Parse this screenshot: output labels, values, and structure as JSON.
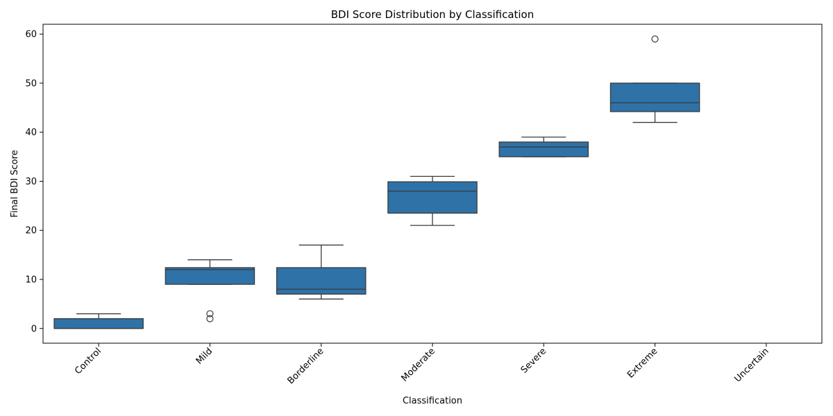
{
  "chart_data": {
    "type": "box",
    "title": "BDI Score Distribution by Classification",
    "xlabel": "Classification",
    "ylabel": "Final BDI Score",
    "ylim": [
      -3,
      62
    ],
    "yticks": [
      0,
      10,
      20,
      30,
      40,
      50,
      60
    ],
    "grid": false,
    "x_tick_rotation": 45,
    "box_color": "#2f72a8",
    "line_color": "#3a3a3a",
    "categories": [
      "Control",
      "Mild",
      "Borderline",
      "Moderate",
      "Severe",
      "Extreme",
      "Uncertain"
    ],
    "boxes": [
      {
        "category": "Control",
        "whisker_low": 0,
        "q1": 0,
        "median": 0,
        "q3": 2,
        "whisker_high": 3,
        "outliers": []
      },
      {
        "category": "Mild",
        "whisker_low": 9,
        "q1": 9,
        "median": 12,
        "q3": 12.4,
        "whisker_high": 14,
        "outliers": [
          3,
          2
        ]
      },
      {
        "category": "Borderline",
        "whisker_low": 6,
        "q1": 7,
        "median": 8,
        "q3": 12.4,
        "whisker_high": 17,
        "outliers": []
      },
      {
        "category": "Moderate",
        "whisker_low": 21,
        "q1": 23.5,
        "median": 28,
        "q3": 29.9,
        "whisker_high": 31,
        "outliers": []
      },
      {
        "category": "Severe",
        "whisker_low": 35,
        "q1": 35,
        "median": 37,
        "q3": 38,
        "whisker_high": 39,
        "outliers": []
      },
      {
        "category": "Extreme",
        "whisker_low": 42,
        "q1": 44.2,
        "median": 46,
        "q3": 50,
        "whisker_high": 50,
        "outliers": [
          59
        ]
      },
      {
        "category": "Uncertain",
        "empty": true
      }
    ]
  }
}
